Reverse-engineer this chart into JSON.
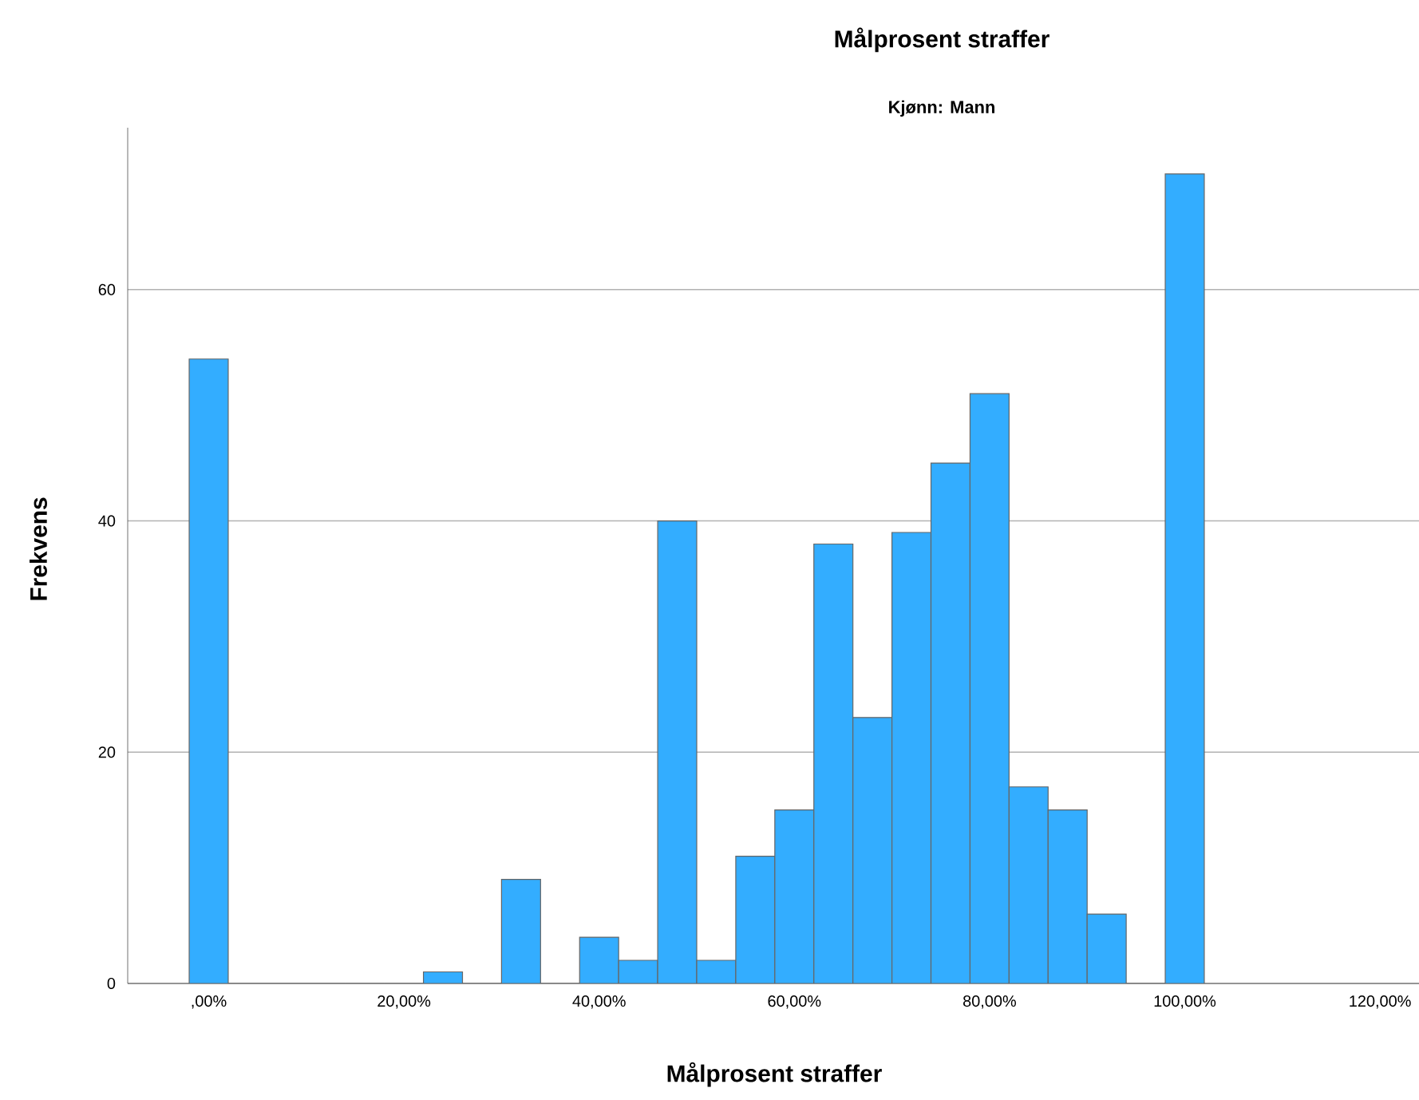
{
  "chart_data": {
    "type": "histogram",
    "title": "Målprosent straffer",
    "subtitle": "Kjønn: Mann",
    "xlabel": "Målprosent straffer",
    "ylabel": "Frekvens",
    "bins": [
      -2,
      2,
      6,
      10,
      14,
      18,
      22,
      26,
      30,
      34,
      38,
      42,
      46,
      50,
      54,
      58,
      62,
      66,
      70,
      74,
      78,
      82,
      86,
      90,
      94,
      98,
      102
    ],
    "values": [
      54,
      0,
      0,
      0,
      0,
      0,
      1,
      0,
      9,
      0,
      4,
      2,
      40,
      2,
      11,
      15,
      38,
      23,
      39,
      45,
      51,
      17,
      15,
      6,
      0,
      70
    ],
    "color": "#33adff",
    "xlim": [
      -8.3,
      124
    ],
    "xticks": [
      {
        "value": 0,
        "label": ",00%"
      },
      {
        "value": 20,
        "label": "20,00%"
      },
      {
        "value": 40,
        "label": "40,00%"
      },
      {
        "value": 60,
        "label": "60,00%"
      },
      {
        "value": 80,
        "label": "80,00%"
      },
      {
        "value": 100,
        "label": "100,00%"
      },
      {
        "value": 120,
        "label": "120,00%"
      }
    ],
    "ylim": [
      0,
      74
    ],
    "yticks": [
      0,
      20,
      40,
      60
    ],
    "grid": "y"
  }
}
